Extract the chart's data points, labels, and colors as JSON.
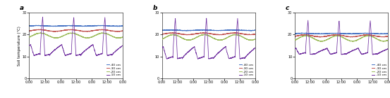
{
  "panel_labels": [
    "a",
    "b",
    "c"
  ],
  "ylabel": "Soil temperature (°C)",
  "xlabel_ticks": [
    "0:00",
    "12:00",
    "0:00",
    "12:00",
    "0:00",
    "12:00",
    "0:00"
  ],
  "ylim": [
    0,
    30
  ],
  "yticks": [
    0,
    10,
    20,
    30
  ],
  "legend_labels": [
    "-40 cm",
    "-30 cm",
    "-20 cm",
    "-10 cm"
  ],
  "line_colors": [
    "#4472c4",
    "#c0504d",
    "#9bbb59",
    "#7030a0"
  ],
  "panels": [
    {
      "label": "a",
      "base": [
        24.0,
        22.0,
        20.0,
        18.5
      ],
      "amp": [
        0.5,
        1.5,
        3.0,
        0.0
      ],
      "night_low": [
        24.0,
        21.5,
        18.5,
        15.0
      ],
      "day_low": [
        23.5,
        19.5,
        14.5,
        10.5
      ],
      "spike_peak": [
        25.5,
        24.5,
        22.5,
        28.0
      ],
      "phase_shift": [
        0.55,
        0.5,
        0.45,
        0.0
      ]
    },
    {
      "label": "b",
      "base": [
        22.0,
        20.0,
        18.0,
        16.0
      ],
      "amp": [
        0.5,
        1.5,
        3.0,
        0.0
      ],
      "night_low": [
        22.0,
        20.0,
        17.5,
        14.0
      ],
      "day_low": [
        21.5,
        18.0,
        12.5,
        9.0
      ],
      "spike_peak": [
        23.5,
        23.0,
        22.0,
        27.5
      ],
      "phase_shift": [
        0.55,
        0.5,
        0.45,
        0.0
      ]
    },
    {
      "label": "c",
      "base": [
        20.5,
        19.0,
        17.5,
        15.5
      ],
      "amp": [
        0.5,
        1.5,
        2.5,
        0.0
      ],
      "night_low": [
        20.5,
        19.0,
        17.0,
        13.5
      ],
      "day_low": [
        20.0,
        18.0,
        14.5,
        11.0
      ],
      "spike_peak": [
        22.0,
        22.5,
        21.5,
        26.5
      ],
      "phase_shift": [
        0.55,
        0.5,
        0.45,
        0.0
      ]
    }
  ]
}
